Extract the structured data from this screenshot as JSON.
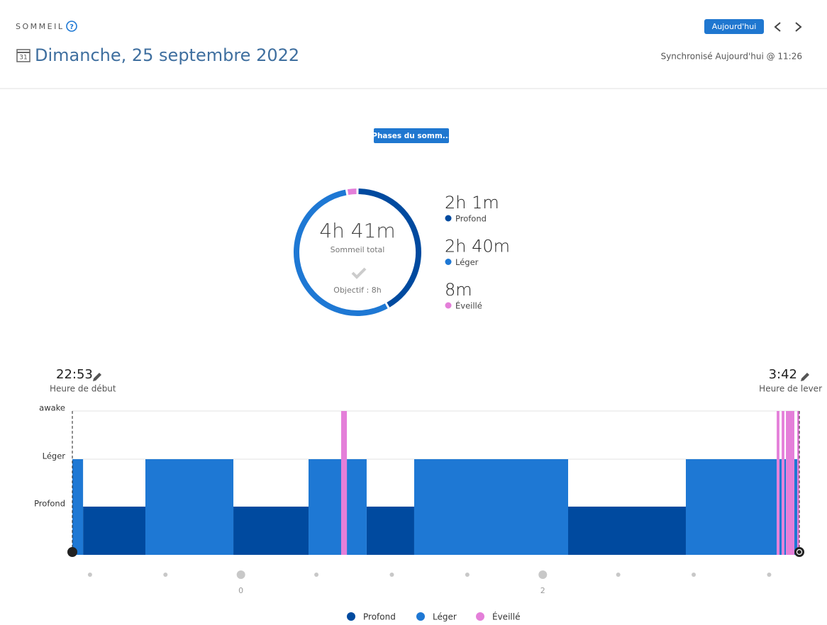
{
  "header": {
    "section": "SOMMEIL",
    "calendar_day": "31",
    "date": "Dimanche, 25 septembre 2022",
    "today_button": "Aujourd'hui",
    "sync": "Synchronisé Aujourd'hui @ 11:26"
  },
  "tab_button": "Phases du somm...",
  "summary": {
    "total": "4h 41m",
    "total_label": "Sommeil total",
    "goal": "Objectif : 8h",
    "stages": [
      {
        "value": "2h 1m",
        "label": "Profond",
        "minutes": 121,
        "color": "#004a9f"
      },
      {
        "value": "2h 40m",
        "label": "Léger",
        "minutes": 160,
        "color": "#1e78d4"
      },
      {
        "value": "8m",
        "label": "Éveillé",
        "minutes": 8,
        "color": "#e47fd9"
      }
    ]
  },
  "timeline": {
    "start": "22:53",
    "start_label": "Heure de début",
    "end": "3:42",
    "end_label": "Heure de lever"
  },
  "chart_data": {
    "type": "sleep-stages",
    "ycategories": [
      "Profond",
      "Léger",
      "awake"
    ],
    "xlim": [
      -1.117,
      3.7
    ],
    "xticks": [
      0,
      2
    ],
    "minor_xticks": [
      -1,
      -0.5,
      0.5,
      1,
      1.5,
      2.5,
      3,
      3.5
    ],
    "grid": true,
    "series": [
      {
        "name": "Profond",
        "color": "#004a9f",
        "starts": [
          -1.046,
          -0.05,
          0.833,
          2.168
        ],
        "ends": [
          -0.633,
          0.448,
          1.148,
          2.948
        ]
      },
      {
        "name": "Léger",
        "color": "#1e78d4",
        "starts": [
          -1.117,
          -0.633,
          0.448,
          0.702,
          1.148,
          2.948,
          3.568,
          3.601,
          3.667
        ],
        "ends": [
          -1.046,
          -0.05,
          0.664,
          0.833,
          2.168,
          3.55,
          3.583,
          3.611,
          3.686
        ]
      },
      {
        "name": "Éveillé",
        "color": "#e47fd9",
        "starts": [
          0.664,
          3.55,
          3.583,
          3.611,
          3.686
        ],
        "ends": [
          0.702,
          3.568,
          3.601,
          3.667,
          3.7
        ]
      }
    ]
  }
}
